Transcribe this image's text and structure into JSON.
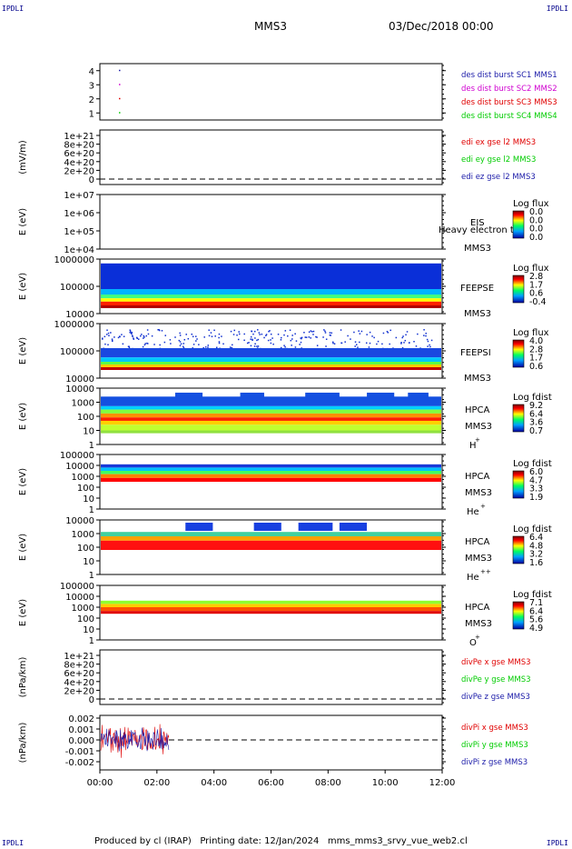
{
  "corner_label": "IPDLI",
  "header": {
    "left": "MMS3",
    "right": "03/Dec/2018 00:00"
  },
  "footer": "Produced by cl (IRAP)   Printing date: 12/Jan/2024   mms_mms3_srvy_vue_web2.cl",
  "colors": {
    "red": "#e00000",
    "magenta": "#d000d0",
    "green": "#00cc00",
    "blue": "#0000cc",
    "dkblue": "#1a1aa8"
  },
  "chart_data": [
    {
      "type": "scatter",
      "panel": "burst",
      "yticks": [
        "1",
        "2",
        "3",
        "4"
      ],
      "ylim": [
        0.5,
        4.5
      ],
      "points": [
        {
          "x": "00:42",
          "y": 4,
          "color": "#1a1aa8"
        },
        {
          "x": "00:42",
          "y": 3,
          "color": "#d000d0"
        },
        {
          "x": "00:42",
          "y": 2,
          "color": "#e00000"
        },
        {
          "x": "00:42",
          "y": 1,
          "color": "#00cc00"
        }
      ],
      "legend": [
        {
          "text": "des dist burst SC1 MMS1",
          "color": "#1a1aa8"
        },
        {
          "text": "des dist burst SC2 MMS2",
          "color": "#d000d0"
        },
        {
          "text": "des dist burst SC3 MMS3",
          "color": "#e00000"
        },
        {
          "text": "des dist burst SC4 MMS4",
          "color": "#00cc00"
        }
      ]
    },
    {
      "type": "line",
      "panel": "edi",
      "ylabel": "(mV/m)",
      "yticks": [
        "1e+21",
        "8e+20",
        "6e+20",
        "4e+20",
        "2e+20",
        "0"
      ],
      "legend": [
        {
          "text": "edi ex gse l2 MMS3",
          "color": "#e00000"
        },
        {
          "text": "edi ey gse l2 MMS3",
          "color": "#00cc00"
        },
        {
          "text": "edi ez gse l2 MMS3",
          "color": "#1a1aa8"
        }
      ]
    },
    {
      "type": "heatmap",
      "panel": "eis",
      "ylabel": "E (eV)",
      "yticks": [
        "1e+07",
        "1e+06",
        "1e+05",
        "1e+04"
      ],
      "instrument": [
        "EIS",
        "Heavy electron to",
        "MMS3"
      ],
      "colorbar": {
        "title": "Log flux",
        "ticks": [
          "0.0",
          "0.0",
          "0.0",
          "0.0"
        ]
      }
    },
    {
      "type": "heatmap",
      "panel": "feepse",
      "ylabel": "E (eV)",
      "yticks": [
        "1000000",
        "100000",
        "10000"
      ],
      "instrument": [
        "FEEPSE",
        "MMS3"
      ],
      "colorbar": {
        "title": "Log flux",
        "ticks": [
          "2.8",
          "1.7",
          "0.6",
          "-0.4"
        ]
      }
    },
    {
      "type": "heatmap",
      "panel": "feepsi",
      "ylabel": "E (eV)",
      "yticks": [
        "1000000",
        "100000",
        "10000"
      ],
      "instrument": [
        "FEEPSI",
        "MMS3"
      ],
      "colorbar": {
        "title": "Log flux",
        "ticks": [
          "4.0",
          "2.8",
          "1.7",
          "0.6"
        ]
      }
    },
    {
      "type": "heatmap",
      "panel": "hpca_h",
      "ylabel": "E (eV)",
      "yticks": [
        "10000",
        "1000",
        "100",
        "10",
        "1"
      ],
      "instrument": [
        "HPCA",
        "MMS3",
        "H",
        "+"
      ],
      "colorbar": {
        "title": "Log fdist",
        "ticks": [
          "9.2",
          "6.4",
          "3.6",
          "0.7"
        ]
      }
    },
    {
      "type": "heatmap",
      "panel": "hpca_he",
      "ylabel": "E (eV)",
      "yticks": [
        "100000",
        "10000",
        "1000",
        "100",
        "10",
        "1"
      ],
      "instrument": [
        "HPCA",
        "MMS3",
        "He",
        "+"
      ],
      "colorbar": {
        "title": "Log fdist",
        "ticks": [
          "6.0",
          "4.7",
          "3.3",
          "1.9"
        ]
      }
    },
    {
      "type": "heatmap",
      "panel": "hpca_hepp",
      "ylabel": "E (eV)",
      "yticks": [
        "10000",
        "1000",
        "100",
        "10",
        "1"
      ],
      "instrument": [
        "HPCA",
        "MMS3",
        "He",
        "++"
      ],
      "colorbar": {
        "title": "Log fdist",
        "ticks": [
          "6.4",
          "4.8",
          "3.2",
          "1.6"
        ]
      }
    },
    {
      "type": "heatmap",
      "panel": "hpca_o",
      "ylabel": "E (eV)",
      "yticks": [
        "100000",
        "10000",
        "1000",
        "100",
        "10",
        "1"
      ],
      "instrument": [
        "HPCA",
        "MMS3",
        "O",
        "+"
      ],
      "colorbar": {
        "title": "Log fdist",
        "ticks": [
          "7.1",
          "6.4",
          "5.6",
          "4.9"
        ]
      }
    },
    {
      "type": "line",
      "panel": "divpe",
      "ylabel": "(nPa/km)",
      "yticks": [
        "1e+21",
        "8e+20",
        "6e+20",
        "4e+20",
        "2e+20",
        "0"
      ],
      "legend": [
        {
          "text": "divPe x gse MMS3",
          "color": "#e00000"
        },
        {
          "text": "divPe y gse MMS3",
          "color": "#00cc00"
        },
        {
          "text": "divPe z gse MMS3",
          "color": "#1a1aa8"
        }
      ]
    },
    {
      "type": "line",
      "panel": "divpi",
      "ylabel": "(nPa/km)",
      "yticks": [
        "0.002",
        "0.001",
        "0.000",
        "-0.001",
        "-0.002"
      ],
      "ylim": [
        -0.0025,
        0.0025
      ],
      "x_extent": [
        "00:00",
        "02:25"
      ],
      "legend": [
        {
          "text": "divPi x gse MMS3",
          "color": "#e00000"
        },
        {
          "text": "divPi y gse MMS3",
          "color": "#00cc00"
        },
        {
          "text": "divPi z gse MMS3",
          "color": "#1a1aa8"
        }
      ]
    }
  ],
  "xaxis": {
    "ticks": [
      "00:00",
      "02:00",
      "04:00",
      "06:00",
      "08:00",
      "10:00",
      "12:00"
    ],
    "xlim": [
      "00:00",
      "12:00"
    ]
  }
}
